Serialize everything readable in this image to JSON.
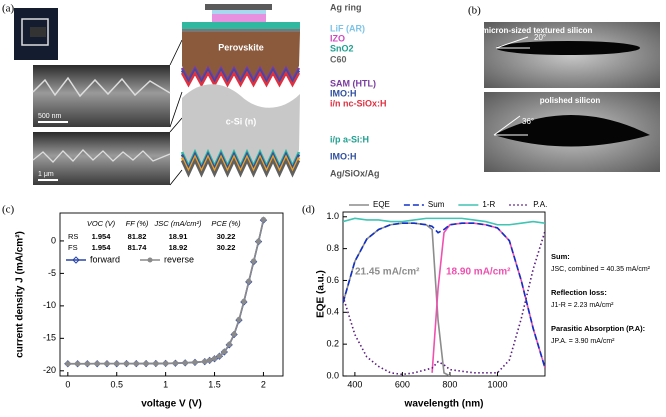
{
  "panel_labels": [
    "(a)",
    "(b)",
    "(c)",
    "(d)"
  ],
  "sem_scale_bars": [
    "500 nm",
    "1 μm"
  ],
  "stack_inner_labels": [
    "Perovskite",
    "c-Si (n)"
  ],
  "stack_labels": [
    {
      "text": "Ag ring",
      "color": "#555555"
    },
    {
      "text": "LiF (AR)",
      "color": "#7cc4e8"
    },
    {
      "text": "IZO",
      "color": "#d048c0"
    },
    {
      "text": "SnO2",
      "color": "#20a090"
    },
    {
      "text": "C60",
      "color": "#666666"
    },
    {
      "text": "SAM (HTL)",
      "color": "#7a3aa0"
    },
    {
      "text": "IMO:H",
      "color": "#2f4fa0"
    },
    {
      "text": "i/n nc-SiOx:H",
      "color": "#e03040"
    },
    {
      "text": "i/p a-Si:H",
      "color": "#20a090"
    },
    {
      "text": "IMO:H",
      "color": "#2f4fa0"
    },
    {
      "text": "Ag/SiOx/Ag",
      "color": "#555555"
    }
  ],
  "contact_angle": [
    {
      "title": "submicron-sized textured silicon",
      "angle": "20°"
    },
    {
      "title": "polished silicon",
      "angle": "36°"
    }
  ],
  "chart_data": [
    {
      "type": "line",
      "xlabel": "voltage V (V)",
      "ylabel": "current density J (mA/cm²)",
      "x": [
        0,
        0.1,
        0.2,
        0.3,
        0.4,
        0.5,
        0.6,
        0.7,
        0.8,
        0.9,
        1.0,
        1.1,
        1.2,
        1.3,
        1.4,
        1.45,
        1.5,
        1.55,
        1.6,
        1.65,
        1.7,
        1.75,
        1.8,
        1.85,
        1.9,
        1.95,
        2.0
      ],
      "series": [
        {
          "name": "forward",
          "color": "#2a45a8",
          "marker": "diamond",
          "dash": "solid",
          "values": [
            -18.92,
            -18.92,
            -18.92,
            -18.91,
            -18.91,
            -18.91,
            -18.9,
            -18.9,
            -18.89,
            -18.88,
            -18.86,
            -18.83,
            -18.78,
            -18.7,
            -18.58,
            -18.4,
            -18.15,
            -17.75,
            -17.1,
            -16.0,
            -14.4,
            -12.2,
            -9.4,
            -6.3,
            -3.2,
            -0.1,
            3.2
          ]
        },
        {
          "name": "reverse",
          "color": "#8a8a8a",
          "marker": "circle",
          "dash": "solid",
          "values": [
            -18.91,
            -18.91,
            -18.91,
            -18.9,
            -18.9,
            -18.9,
            -18.9,
            -18.89,
            -18.88,
            -18.87,
            -18.85,
            -18.82,
            -18.77,
            -18.69,
            -18.56,
            -18.38,
            -18.12,
            -17.72,
            -17.05,
            -15.95,
            -14.35,
            -12.1,
            -9.3,
            -6.2,
            -3.1,
            -0.05,
            3.3
          ]
        }
      ],
      "xlim": [
        -0.08,
        2.2
      ],
      "ylim": [
        -20.8,
        4.3
      ],
      "xticks": [
        0,
        0.5,
        1,
        1.5,
        2
      ],
      "yticks": [
        0,
        -5,
        -10,
        -15,
        -20
      ],
      "legend": "upper left",
      "table": {
        "columns": [
          "VOC (V)",
          "FF (%)",
          "JSC (mA/cm²)",
          "PCE (%)"
        ],
        "rows": [
          [
            "RS",
            "1.954",
            "81.82",
            "18.91",
            "30.22"
          ],
          [
            "FS",
            "1.954",
            "81.74",
            "18.92",
            "30.22"
          ]
        ]
      }
    },
    {
      "type": "line",
      "xlabel": "wavelength (nm)",
      "ylabel": "EQE (a.u.)",
      "x": [
        350,
        400,
        450,
        500,
        550,
        600,
        650,
        700,
        725,
        750,
        775,
        800,
        850,
        900,
        950,
        1000,
        1050,
        1100,
        1150,
        1200
      ],
      "series": [
        {
          "name": "EQE",
          "color": "#8c8c8c",
          "dash": "solid",
          "values": [
            0.46,
            0.72,
            0.86,
            0.92,
            0.95,
            0.96,
            0.96,
            0.95,
            0.92,
            0.35,
            0.02,
            0,
            null,
            null,
            null,
            null,
            null,
            null,
            null,
            null
          ]
        },
        {
          "color": "#f050b0",
          "dash": "solid",
          "values": [
            null,
            null,
            null,
            null,
            null,
            null,
            null,
            null,
            0.02,
            0.55,
            0.9,
            0.95,
            0.96,
            0.96,
            0.95,
            0.93,
            0.85,
            0.6,
            0.3,
            0.05
          ]
        },
        {
          "name": "Sum",
          "color": "#1030c8",
          "dash": "dashed",
          "values": [
            0.46,
            0.72,
            0.86,
            0.92,
            0.95,
            0.96,
            0.96,
            0.95,
            0.94,
            0.9,
            0.92,
            0.95,
            0.96,
            0.96,
            0.95,
            0.93,
            0.85,
            0.6,
            0.3,
            0.05
          ]
        },
        {
          "name": "1-R",
          "color": "#40c4b4",
          "dash": "solid",
          "values": [
            0.97,
            0.99,
            0.98,
            0.98,
            0.97,
            0.97,
            0.98,
            0.99,
            0.99,
            0.99,
            0.99,
            0.99,
            0.99,
            0.98,
            0.97,
            0.95,
            0.95,
            0.96,
            0.97,
            0.96
          ]
        },
        {
          "name": "P.A.",
          "color": "#5a1a80",
          "dash": "dotted",
          "values": [
            0.5,
            0.26,
            0.12,
            0.06,
            0.02,
            0.01,
            0.02,
            0.04,
            0.05,
            0.09,
            0.07,
            0.04,
            0.03,
            0.02,
            0.02,
            0.02,
            0.1,
            0.36,
            0.67,
            0.91
          ]
        }
      ],
      "xlim": [
        350,
        1200
      ],
      "ylim": [
        0,
        1.03
      ],
      "xticks": [
        400,
        600,
        800,
        1000
      ],
      "yticks": [
        {
          "value": 0,
          "label": "0.0"
        },
        0.2,
        0.4,
        0.6,
        0.8,
        {
          "value": 1,
          "label": "1.0"
        }
      ],
      "legend": "above",
      "annotations": [
        {
          "text": "21.45 mA/cm²",
          "color": "#8c8c8c"
        },
        {
          "text": "18.90 mA/cm²",
          "color": "#f050b0"
        }
      ],
      "notes": [
        {
          "heading": "Sum:",
          "text": "JSC, combined = 40.35 mA/cm²"
        },
        {
          "heading": "Reflection loss:",
          "text": "J1-R = 2.23 mA/cm²"
        },
        {
          "heading": "Parasitic Absorption (P.A):",
          "text": "JP.A. = 3.90 mA/cm²"
        }
      ]
    }
  ]
}
